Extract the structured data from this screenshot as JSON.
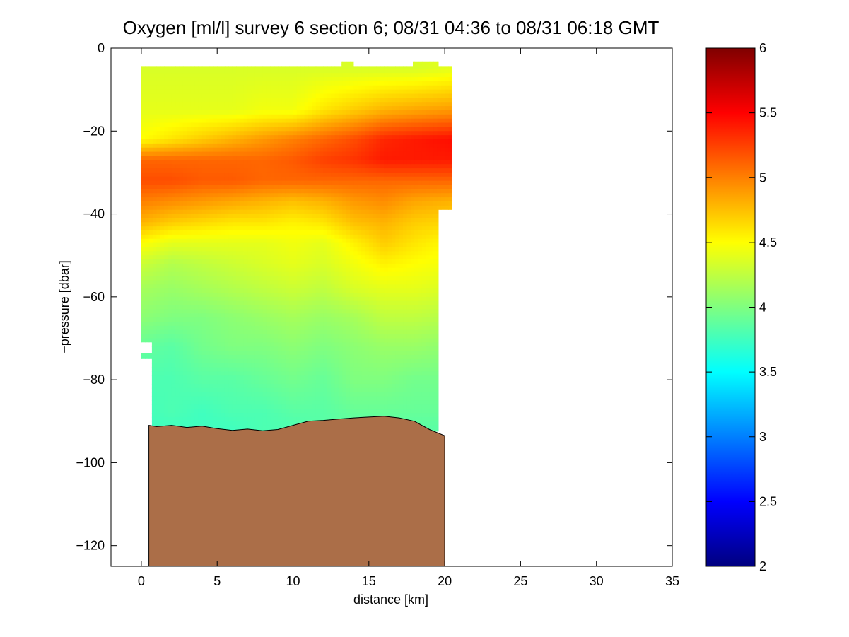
{
  "chart_data": {
    "type": "heatmap",
    "title": "Oxygen [ml/l] survey 6 section 6; 08/31 04:36 to 08/31 06:18 GMT",
    "xlabel": "distance [km]",
    "ylabel": "−pressure [dbar]",
    "xlim": [
      -2,
      35
    ],
    "ylim": [
      -125,
      0
    ],
    "x_ticks": [
      0,
      5,
      10,
      15,
      20,
      25,
      30,
      35
    ],
    "y_ticks": [
      0,
      -20,
      -40,
      -60,
      -80,
      -100,
      -120
    ],
    "x_tick_labels": [
      "0",
      "5",
      "10",
      "15",
      "20",
      "25",
      "30",
      "35"
    ],
    "y_tick_labels": [
      "0",
      "−20",
      "−40",
      "−60",
      "−80",
      "−100",
      "−120"
    ],
    "colorbar": {
      "min": 2,
      "max": 6,
      "ticks": [
        2,
        2.5,
        3,
        3.5,
        4,
        4.5,
        5,
        5.5,
        6
      ],
      "tick_labels": [
        "2",
        "2.5",
        "3",
        "3.5",
        "4",
        "4.5",
        "5",
        "5.5",
        "6"
      ],
      "colormap": "jet"
    },
    "field": {
      "x": [
        0,
        2,
        4,
        6,
        8,
        10,
        12,
        14,
        16,
        18,
        20.5
      ],
      "depth": [
        -5,
        -15,
        -22,
        -27,
        -32,
        -37,
        -42,
        -47,
        -52,
        -58,
        -65,
        -72,
        -80,
        -88,
        -92
      ],
      "values": [
        [
          4.35,
          4.35,
          4.35,
          4.35,
          4.35,
          4.35,
          4.35,
          4.35,
          4.35,
          4.35,
          4.4
        ],
        [
          4.4,
          4.4,
          4.4,
          4.4,
          4.45,
          4.45,
          4.6,
          4.7,
          4.8,
          4.85,
          4.9
        ],
        [
          4.5,
          4.6,
          4.7,
          4.8,
          4.9,
          5.0,
          5.1,
          5.2,
          5.35,
          5.4,
          5.45
        ],
        [
          5.1,
          5.1,
          5.1,
          5.1,
          5.1,
          5.15,
          5.25,
          5.3,
          5.4,
          5.4,
          5.4
        ],
        [
          5.2,
          5.2,
          5.15,
          5.15,
          5.1,
          5.1,
          5.1,
          5.1,
          5.1,
          5.1,
          5.1
        ],
        [
          5.0,
          4.95,
          4.9,
          4.85,
          4.8,
          4.75,
          4.8,
          4.9,
          4.95,
          4.85,
          4.8
        ],
        [
          4.8,
          4.7,
          4.65,
          4.6,
          4.6,
          4.55,
          4.6,
          4.75,
          4.8,
          4.7,
          4.65
        ],
        [
          4.5,
          4.4,
          4.4,
          4.4,
          4.4,
          4.45,
          4.4,
          4.55,
          4.7,
          4.6,
          4.5
        ],
        [
          4.3,
          4.2,
          4.25,
          4.3,
          4.35,
          4.4,
          4.35,
          4.45,
          4.55,
          4.5,
          4.45
        ],
        [
          4.15,
          4.1,
          4.15,
          4.2,
          4.25,
          4.3,
          4.25,
          4.35,
          4.4,
          4.4,
          4.35
        ],
        [
          4.05,
          4.0,
          4.0,
          4.05,
          4.1,
          4.15,
          4.1,
          4.15,
          4.25,
          4.25,
          4.2
        ],
        [
          3.9,
          3.85,
          3.95,
          4.0,
          4.0,
          4.05,
          4.0,
          4.05,
          4.1,
          4.1,
          4.05
        ],
        [
          3.8,
          3.8,
          3.85,
          3.85,
          3.9,
          3.95,
          3.9,
          4.0,
          4.0,
          3.95,
          3.95
        ],
        [
          3.75,
          3.8,
          3.75,
          3.8,
          3.8,
          3.85,
          3.85,
          3.9,
          3.9,
          3.9,
          3.9
        ],
        [
          3.75,
          3.75,
          3.75,
          3.75,
          3.8,
          3.8,
          3.85,
          3.85,
          3.85,
          3.85,
          3.85
        ]
      ]
    },
    "bottom_color": "#ab6e48",
    "bottom_profile": [
      [
        0.5,
        -91
      ],
      [
        1,
        -91.3
      ],
      [
        2,
        -91
      ],
      [
        3,
        -91.5
      ],
      [
        4,
        -91.2
      ],
      [
        5,
        -91.8
      ],
      [
        6,
        -92.2
      ],
      [
        7,
        -91.9
      ],
      [
        8,
        -92.3
      ],
      [
        9,
        -92.0
      ],
      [
        10,
        -91.0
      ],
      [
        11,
        -90.0
      ],
      [
        12,
        -89.8
      ],
      [
        13,
        -89.5
      ],
      [
        14,
        -89.2
      ],
      [
        15,
        -89.0
      ],
      [
        16,
        -88.8
      ],
      [
        17,
        -89.2
      ],
      [
        18,
        -90.0
      ],
      [
        19,
        -92.0
      ],
      [
        20,
        -93.5
      ]
    ],
    "data_mask": {
      "polygon": [
        [
          0,
          -4.5
        ],
        [
          13.2,
          -4.5
        ],
        [
          13.2,
          -3.2
        ],
        [
          14,
          -3.2
        ],
        [
          14,
          -4.5
        ],
        [
          17.9,
          -4.5
        ],
        [
          17.9,
          -3.2
        ],
        [
          19.6,
          -3.2
        ],
        [
          19.6,
          -4.5
        ],
        [
          20.5,
          -4.5
        ],
        [
          20.5,
          -39
        ],
        [
          19.6,
          -39
        ],
        [
          19.6,
          -92.5
        ],
        [
          0.7,
          -92.5
        ],
        [
          0.7,
          -75
        ],
        [
          0,
          -75
        ],
        [
          0,
          -73.5
        ],
        [
          0.7,
          -73.5
        ],
        [
          0.7,
          -71
        ],
        [
          0,
          -71
        ]
      ]
    }
  }
}
